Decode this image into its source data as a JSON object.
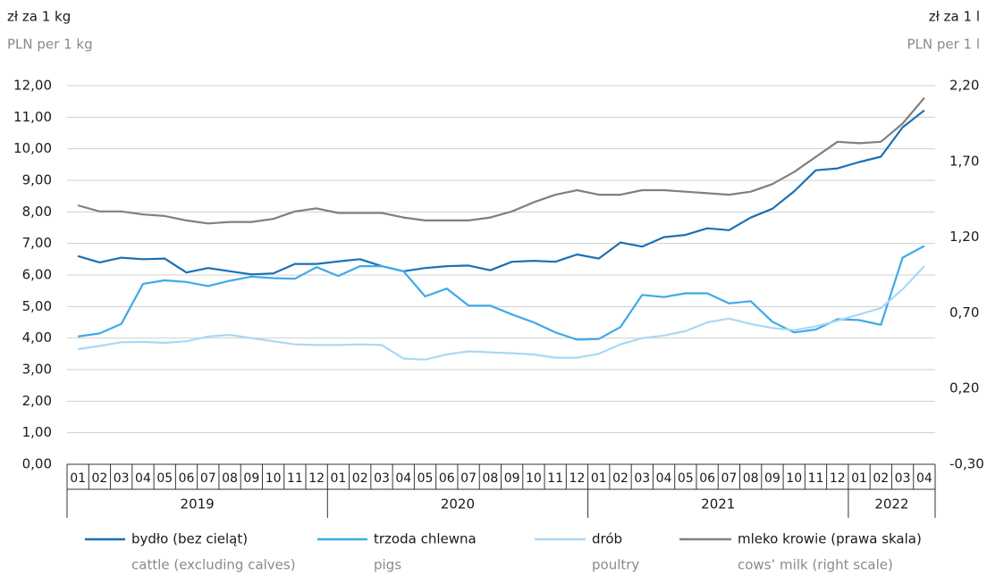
{
  "chart_data": {
    "type": "line",
    "y_label": "zł za 1 kg",
    "y_label_en": "PLN per 1 kg",
    "y2_label": "zł za 1 l",
    "y2_label_en": "PLN per 1 l",
    "categories": [
      "01",
      "02",
      "03",
      "04",
      "05",
      "06",
      "07",
      "08",
      "09",
      "10",
      "11",
      "12",
      "01",
      "02",
      "03",
      "04",
      "05",
      "06",
      "07",
      "08",
      "09",
      "10",
      "11",
      "12",
      "01",
      "02",
      "03",
      "04",
      "05",
      "06",
      "07",
      "08",
      "09",
      "10",
      "11",
      "12",
      "01",
      "02",
      "03",
      "04"
    ],
    "years": [
      "2019",
      "2020",
      "2021",
      "2022"
    ],
    "ylim": [
      0,
      12
    ],
    "yticks": [
      {
        "value": 0,
        "label": "0,00"
      },
      {
        "value": 1,
        "label": "1,00"
      },
      {
        "value": 2,
        "label": "2,00"
      },
      {
        "value": 3,
        "label": "3,00"
      },
      {
        "value": 4,
        "label": "4,00"
      },
      {
        "value": 5,
        "label": "5,00"
      },
      {
        "value": 6,
        "label": "6,00"
      },
      {
        "value": 7,
        "label": "7,00"
      },
      {
        "value": 8,
        "label": "8,00"
      },
      {
        "value": 9,
        "label": "9,00"
      },
      {
        "value": 10,
        "label": "10,00"
      },
      {
        "value": 11,
        "label": "11,00"
      },
      {
        "value": 12,
        "label": "12,00"
      }
    ],
    "y2lim": [
      -0.3,
      2.2
    ],
    "y2ticks": [
      {
        "value": -0.3,
        "label": "-0,30"
      },
      {
        "value": 0.2,
        "label": "0,20"
      },
      {
        "value": 0.7,
        "label": "0,70"
      },
      {
        "value": 1.2,
        "label": "1,20"
      },
      {
        "value": 1.7,
        "label": "1,70"
      },
      {
        "value": 2.2,
        "label": "2,20"
      }
    ],
    "grid": true,
    "series": [
      {
        "name": "bydło (bez cieląt)",
        "name_en": "cattle (excluding calves)",
        "color": "#1a70b5",
        "axis": "y",
        "values": [
          6.6,
          6.4,
          6.55,
          6.5,
          6.52,
          6.08,
          6.22,
          6.12,
          6.02,
          6.05,
          6.35,
          6.35,
          6.43,
          6.5,
          6.28,
          6.12,
          6.22,
          6.28,
          6.3,
          6.15,
          6.42,
          6.45,
          6.42,
          6.65,
          6.52,
          7.03,
          6.9,
          7.2,
          7.27,
          7.48,
          7.42,
          7.82,
          8.1,
          8.65,
          9.32,
          9.38,
          9.58,
          9.75,
          10.68,
          11.22
        ]
      },
      {
        "name": "trzoda chlewna",
        "name_en": "pigs",
        "color": "#3fa9e8",
        "axis": "y",
        "values": [
          4.05,
          4.15,
          4.45,
          5.72,
          5.83,
          5.78,
          5.65,
          5.82,
          5.95,
          5.9,
          5.88,
          6.25,
          5.97,
          6.28,
          6.28,
          6.12,
          5.32,
          5.57,
          5.03,
          5.03,
          4.75,
          4.5,
          4.18,
          3.95,
          3.97,
          4.35,
          5.37,
          5.3,
          5.42,
          5.42,
          5.1,
          5.17,
          4.52,
          4.18,
          4.27,
          4.6,
          4.57,
          4.42,
          6.55,
          6.92
        ]
      },
      {
        "name": "drób",
        "name_en": "poultry",
        "color": "#a9d8f5",
        "axis": "y",
        "values": [
          3.65,
          3.75,
          3.87,
          3.88,
          3.85,
          3.9,
          4.05,
          4.1,
          4.0,
          3.9,
          3.8,
          3.78,
          3.78,
          3.8,
          3.78,
          3.35,
          3.32,
          3.48,
          3.58,
          3.55,
          3.52,
          3.48,
          3.38,
          3.38,
          3.5,
          3.8,
          4.0,
          4.08,
          4.22,
          4.5,
          4.62,
          4.45,
          4.32,
          4.25,
          4.37,
          4.55,
          4.75,
          4.95,
          5.55,
          6.28
        ]
      },
      {
        "name": "mleko krowie (prawa skala)",
        "name_en": "cows’ milk (right scale)",
        "color": "#808080",
        "axis": "y2",
        "values": [
          1.41,
          1.37,
          1.37,
          1.35,
          1.34,
          1.31,
          1.29,
          1.3,
          1.3,
          1.32,
          1.37,
          1.39,
          1.36,
          1.36,
          1.36,
          1.33,
          1.31,
          1.31,
          1.31,
          1.33,
          1.37,
          1.43,
          1.48,
          1.51,
          1.48,
          1.48,
          1.51,
          1.51,
          1.5,
          1.49,
          1.48,
          1.5,
          1.55,
          1.63,
          1.73,
          1.83,
          1.82,
          1.83,
          1.95,
          2.12
        ]
      }
    ]
  }
}
